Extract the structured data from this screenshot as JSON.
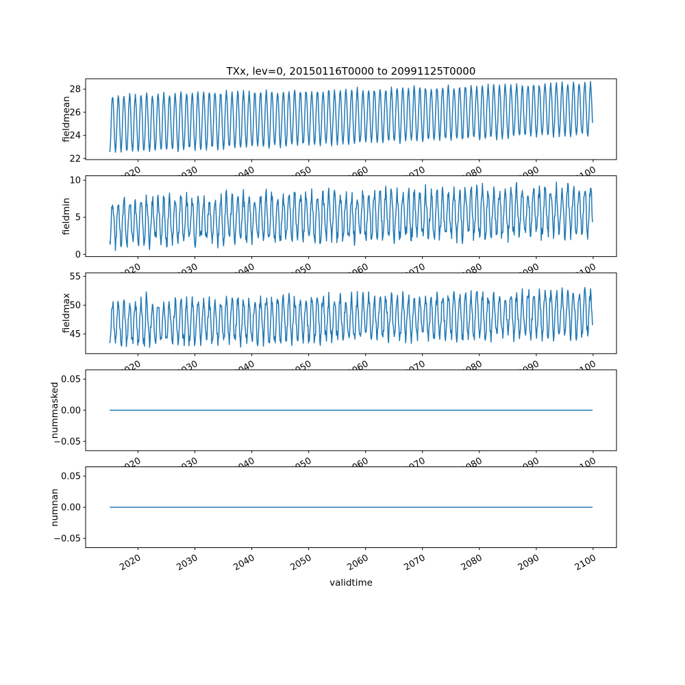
{
  "title": "TXx, lev=0, 20150116T0000 to 20991125T0000",
  "xlabel": "validtime",
  "line_color": "#1f77b4",
  "x": {
    "start": 2015.042,
    "end": 2099.9,
    "points_per_year": 12,
    "period_years": 1,
    "xlim": [
      2010.8,
      2104.1
    ],
    "xtick_values": [
      2020,
      2030,
      2040,
      2050,
      2060,
      2070,
      2080,
      2090,
      2100
    ],
    "xtick_labels": [
      "2020",
      "2030",
      "2040",
      "2050",
      "2060",
      "2070",
      "2080",
      "2090",
      "2100"
    ]
  },
  "chart_data": [
    {
      "type": "line",
      "ylabel": "fieldmean",
      "ylim": [
        21.9,
        28.9
      ],
      "ytick_values": [
        22,
        24,
        26,
        28
      ],
      "ytick_labels": [
        "22",
        "24",
        "26",
        "28"
      ],
      "series": {
        "name": "fieldmean",
        "kind": "seasonal",
        "center_start": 25.0,
        "center_end": 26.3,
        "amp_start": 2.45,
        "amp_end": 2.2,
        "peak_frac": 0.54,
        "noise": 0.2,
        "spike_prob": 0.0,
        "spike_mag": 0,
        "clip_min": null,
        "seed": 11
      }
    },
    {
      "type": "line",
      "ylabel": "fieldmin",
      "ylim": [
        -0.3,
        10.6
      ],
      "ytick_values": [
        0,
        5,
        10
      ],
      "ytick_labels": [
        "0",
        "5",
        "10"
      ],
      "series": {
        "name": "fieldmin",
        "kind": "seasonal",
        "center_start": 4.4,
        "center_end": 5.9,
        "amp_start": 2.9,
        "amp_end": 3.1,
        "peak_frac": 0.54,
        "noise": 1.0,
        "spike_prob": 0.012,
        "spike_mag": -2.0,
        "clip_min": 0.25,
        "seed": 22
      }
    },
    {
      "type": "line",
      "ylabel": "fieldmax",
      "ylim": [
        41.6,
        55.6
      ],
      "ytick_values": [
        45,
        50,
        55
      ],
      "ytick_labels": [
        "45",
        "50",
        "55"
      ],
      "series": {
        "name": "fieldmax",
        "kind": "seasonal",
        "center_start": 46.8,
        "center_end": 48.6,
        "amp_start": 3.5,
        "amp_end": 3.6,
        "peak_frac": 0.54,
        "noise": 1.1,
        "spike_prob": 0.012,
        "spike_mag": 2.2,
        "clip_min": null,
        "seed": 33
      }
    },
    {
      "type": "line",
      "ylabel": "nummasked",
      "ylim": [
        -0.065,
        0.065
      ],
      "ytick_values": [
        -0.05,
        0.0,
        0.05
      ],
      "ytick_labels": [
        "−0.05",
        "0.00",
        "0.05"
      ],
      "series": {
        "name": "nummasked",
        "kind": "constant",
        "value": 0
      }
    },
    {
      "type": "line",
      "ylabel": "numnan",
      "ylim": [
        -0.065,
        0.065
      ],
      "ytick_values": [
        -0.05,
        0.0,
        0.05
      ],
      "ytick_labels": [
        "−0.05",
        "0.00",
        "0.05"
      ],
      "series": {
        "name": "numnan",
        "kind": "constant",
        "value": 0
      }
    }
  ]
}
